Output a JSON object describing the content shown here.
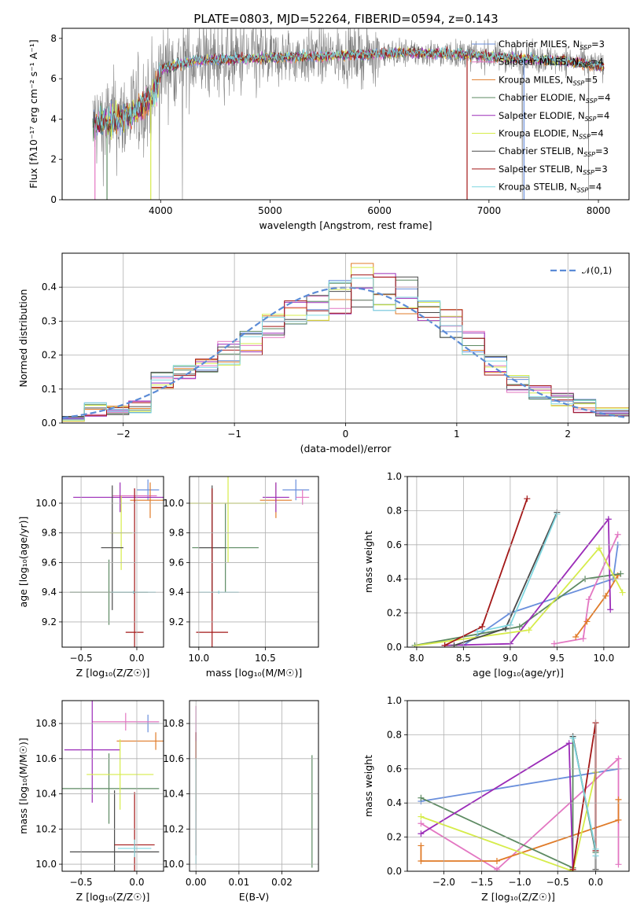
{
  "title": "PLATE=0803, MJD=52264, FIBERID=0594, z=0.143",
  "colors": {
    "Chabrier MILES": "#6a8fdc",
    "Salpeter MILES": "#e377c2",
    "Kroupa MILES": "#e07b28",
    "Chabrier ELODIE": "#5d8a62",
    "Salpeter ELODIE": "#9b2cb8",
    "Kroupa ELODIE": "#d6ec4a",
    "Chabrier STELIB": "#4a4a4a",
    "Salpeter STELIB": "#a31818",
    "Kroupa STELIB": "#7fd7e0"
  },
  "chart_data": [
    {
      "id": "spectrum",
      "type": "line",
      "xlabel": "wavelength [Angstrom, rest frame]",
      "ylabel": "Flux [fλ10⁻¹⁷ erg cm⁻² s⁻¹ A⁻¹]",
      "xlim": [
        3100,
        8280
      ],
      "ylim": [
        0,
        8.5
      ],
      "xticks": [
        "4000",
        "5000",
        "6000",
        "7000",
        "8000"
      ],
      "yticks": [
        "0",
        "2",
        "4",
        "6",
        "8"
      ],
      "grid": false,
      "legend_position": "top-right",
      "legend": [
        "Chabrier MILES, N_SSP=3",
        "Salpeter MILES, N_SSP=4",
        "Kroupa MILES, N_SSP=5",
        "Chabrier ELODIE, N_SSP=4",
        "Salpeter ELODIE, N_SSP=4",
        "Kroupa ELODIE, N_SSP=4",
        "Chabrier STELIB, N_SSP=3",
        "Salpeter STELIB, N_SSP=3",
        "Kroupa STELIB, N_SSP=4"
      ],
      "data_color": "#808080",
      "data_continuum": [
        {
          "x": 3380,
          "y": 3.7
        },
        {
          "x": 3600,
          "y": 4.0
        },
        {
          "x": 3750,
          "y": 4.3
        },
        {
          "x": 3950,
          "y": 5.3
        },
        {
          "x": 4000,
          "y": 6.5
        },
        {
          "x": 4300,
          "y": 6.9
        },
        {
          "x": 4800,
          "y": 7.0
        },
        {
          "x": 5300,
          "y": 7.1
        },
        {
          "x": 5800,
          "y": 7.2
        },
        {
          "x": 6300,
          "y": 7.3
        },
        {
          "x": 6800,
          "y": 7.2
        },
        {
          "x": 7300,
          "y": 7.0
        },
        {
          "x": 7700,
          "y": 6.9
        },
        {
          "x": 8050,
          "y": 6.6
        }
      ]
    },
    {
      "id": "residuals",
      "type": "area",
      "xlabel": "(data-model)/error",
      "ylabel": "Normed distribution",
      "xlim": [
        -2.55,
        2.55
      ],
      "ylim": [
        0,
        0.5
      ],
      "xticks": [
        "−2",
        "−1",
        "0",
        "1",
        "2"
      ],
      "yticks": [
        "0.0",
        "0.1",
        "0.2",
        "0.3",
        "0.4"
      ],
      "grid": true,
      "legend_position": "top-right",
      "reference_curve": {
        "label": "𝒩(0,1)",
        "mean": 0,
        "sigma": 1,
        "color": "#5b8bd6"
      },
      "bin_edges": [
        -2.55,
        -2.35,
        -2.15,
        -1.95,
        -1.75,
        -1.55,
        -1.35,
        -1.15,
        -0.95,
        -0.75,
        -0.55,
        -0.35,
        -0.15,
        0.05,
        0.25,
        0.45,
        0.65,
        0.85,
        1.05,
        1.25,
        1.45,
        1.65,
        1.85,
        2.05,
        2.25,
        2.55
      ],
      "envelope_low": [
        0.005,
        0.02,
        0.025,
        0.03,
        0.1,
        0.13,
        0.15,
        0.17,
        0.2,
        0.25,
        0.29,
        0.3,
        0.32,
        0.34,
        0.33,
        0.32,
        0.3,
        0.25,
        0.2,
        0.14,
        0.09,
        0.07,
        0.05,
        0.03,
        0.02
      ],
      "envelope_high": [
        0.02,
        0.06,
        0.05,
        0.065,
        0.15,
        0.17,
        0.19,
        0.24,
        0.27,
        0.32,
        0.36,
        0.38,
        0.42,
        0.47,
        0.44,
        0.43,
        0.36,
        0.34,
        0.27,
        0.2,
        0.14,
        0.11,
        0.09,
        0.07,
        0.045
      ]
    },
    {
      "id": "z-age",
      "type": "scatter",
      "xlabel": "Z [log₁₀(Z/Z☉)]",
      "ylabel": "age  [log₁₀(age/yr)]",
      "xlim": [
        -0.67,
        0.24
      ],
      "ylim": [
        9.03,
        10.18
      ],
      "xticks": [
        "−0.5",
        "0.0"
      ],
      "yticks": [
        "9.2",
        "9.4",
        "9.6",
        "9.8",
        "10.0"
      ],
      "grid": true,
      "crosses": [
        {
          "series": "Chabrier MILES",
          "x": 0.1,
          "y": 10.09,
          "xerr": 0.1,
          "yerr": 0.07
        },
        {
          "series": "Salpeter MILES",
          "x": -0.02,
          "y": 10.05,
          "xerr": 0.2,
          "yerr": 0.05
        },
        {
          "series": "Kroupa MILES",
          "x": 0.12,
          "y": 10.02,
          "xerr": 0.18,
          "yerr": 0.12
        },
        {
          "series": "Chabrier ELODIE",
          "x": -0.25,
          "y": 9.4,
          "xerr": 0.35,
          "yerr": 0.22
        },
        {
          "series": "Salpeter ELODIE",
          "x": -0.15,
          "y": 10.04,
          "xerr": 0.42,
          "yerr": 0.1
        },
        {
          "series": "Kroupa ELODIE",
          "x": -0.14,
          "y": 9.8,
          "xerr": 0.1,
          "yerr": 0.25
        },
        {
          "series": "Chabrier STELIB",
          "x": -0.22,
          "y": 9.7,
          "xerr": 0.1,
          "yerr": 0.42
        },
        {
          "series": "Salpeter STELIB",
          "x": -0.02,
          "y": 9.13,
          "xerr": 0.08,
          "yerr": 0.97
        },
        {
          "series": "Kroupa STELIB",
          "x": -0.03,
          "y": 9.4,
          "xerr": 0.2,
          "yerr": 0.01
        }
      ]
    },
    {
      "id": "mass-age",
      "type": "scatter",
      "xlabel": "mass [log₁₀(M/M☉)]",
      "ylabel": "",
      "xlim": [
        9.93,
        10.9
      ],
      "ylim": [
        9.03,
        10.18
      ],
      "xticks": [
        "10.0",
        "10.5"
      ],
      "yticks": [
        "9.2",
        "9.4",
        "9.6",
        "9.8",
        "10.0"
      ],
      "grid": true,
      "crosses": [
        {
          "series": "Chabrier MILES",
          "x": 10.73,
          "y": 10.09,
          "xerr": 0.1,
          "yerr": 0.07
        },
        {
          "series": "Salpeter MILES",
          "x": 10.78,
          "y": 10.04,
          "xerr": 0.05,
          "yerr": 0.05
        },
        {
          "series": "Kroupa MILES",
          "x": 10.58,
          "y": 10.02,
          "xerr": 0.12,
          "yerr": 0.12
        },
        {
          "series": "Chabrier ELODIE",
          "x": 10.2,
          "y": 9.7,
          "xerr": 0.25,
          "yerr": 0.3
        },
        {
          "series": "Salpeter ELODIE",
          "x": 10.58,
          "y": 10.04,
          "xerr": 0.1,
          "yerr": 0.1
        },
        {
          "series": "Kroupa ELODIE",
          "x": 10.22,
          "y": 10.0,
          "xerr": 0.3,
          "yerr": 0.4
        },
        {
          "series": "Chabrier STELIB",
          "x": 10.1,
          "y": 9.7,
          "xerr": 0.1,
          "yerr": 0.42
        },
        {
          "series": "Salpeter STELIB",
          "x": 10.1,
          "y": 9.13,
          "xerr": 0.12,
          "yerr": 0.97
        },
        {
          "series": "Kroupa STELIB",
          "x": 10.15,
          "y": 9.4,
          "xerr": 0.15,
          "yerr": 0.01
        }
      ]
    },
    {
      "id": "age-weight",
      "type": "line",
      "xlabel": "age  [log₁₀(age/yr)]",
      "ylabel": "mass weight",
      "xlim": [
        7.9,
        10.27
      ],
      "ylim": [
        0,
        1.0
      ],
      "xticks": [
        "8.0",
        "8.5",
        "9.0",
        "9.5",
        "10.0"
      ],
      "yticks": [
        "0.0",
        "0.2",
        "0.4",
        "0.6",
        "0.8",
        "1.0"
      ],
      "grid": true,
      "series": [
        {
          "name": "Chabrier MILES",
          "x": [
            8.5,
            9.0,
            10.1,
            10.15
          ],
          "y": [
            0.01,
            0.2,
            0.4,
            0.6
          ]
        },
        {
          "name": "Salpeter MILES",
          "x": [
            9.47,
            9.78,
            9.84,
            10.15
          ],
          "y": [
            0.02,
            0.05,
            0.28,
            0.66
          ]
        },
        {
          "name": "Kroupa MILES",
          "x": [
            9.7,
            9.82,
            10.02,
            10.15
          ],
          "y": [
            0.06,
            0.15,
            0.3,
            0.42
          ]
        },
        {
          "name": "Chabrier ELODIE",
          "x": [
            7.98,
            9.1,
            9.8,
            10.18
          ],
          "y": [
            0.01,
            0.12,
            0.4,
            0.43
          ]
        },
        {
          "name": "Salpeter ELODIE",
          "x": [
            8.3,
            9.0,
            10.05,
            10.07
          ],
          "y": [
            0.01,
            0.02,
            0.75,
            0.22
          ]
        },
        {
          "name": "Kroupa ELODIE",
          "x": [
            8.0,
            9.2,
            9.95,
            10.2
          ],
          "y": [
            0.01,
            0.1,
            0.58,
            0.32
          ]
        },
        {
          "name": "Chabrier STELIB",
          "x": [
            8.4,
            8.95,
            9.5
          ],
          "y": [
            0.01,
            0.11,
            0.79
          ]
        },
        {
          "name": "Salpeter STELIB",
          "x": [
            8.3,
            8.7,
            9.18
          ],
          "y": [
            0.01,
            0.12,
            0.87
          ]
        },
        {
          "name": "Kroupa STELIB",
          "x": [
            8.65,
            9.0,
            9.5
          ],
          "y": [
            0.09,
            0.13,
            0.78
          ]
        }
      ]
    },
    {
      "id": "z-mass",
      "type": "scatter",
      "xlabel": "Z [log₁₀(Z/Z☉)]",
      "ylabel": "mass [log₁₀(M/M☉)]",
      "xlim": [
        -0.67,
        0.24
      ],
      "ylim": [
        9.96,
        10.93
      ],
      "xticks": [
        "−0.5",
        "0.0"
      ],
      "yticks": [
        "10.0",
        "10.2",
        "10.4",
        "10.6",
        "10.8"
      ],
      "grid": true,
      "crosses": [
        {
          "series": "Chabrier MILES",
          "x": 0.1,
          "y": 10.8,
          "xerr": 0.1,
          "yerr": 0.05
        },
        {
          "series": "Salpeter MILES",
          "x": -0.1,
          "y": 10.81,
          "xerr": 0.3,
          "yerr": 0.05
        },
        {
          "series": "Kroupa MILES",
          "x": 0.17,
          "y": 10.7,
          "xerr": 0.35,
          "yerr": 0.05
        },
        {
          "series": "Chabrier ELODIE",
          "x": -0.25,
          "y": 10.43,
          "xerr": 0.45,
          "yerr": 0.2
        },
        {
          "series": "Salpeter ELODIE",
          "x": -0.4,
          "y": 10.65,
          "xerr": 0.25,
          "yerr": 0.3
        },
        {
          "series": "Kroupa ELODIE",
          "x": -0.15,
          "y": 10.51,
          "xerr": 0.3,
          "yerr": 0.2
        },
        {
          "series": "Chabrier STELIB",
          "x": -0.2,
          "y": 10.07,
          "xerr": 0.4,
          "yerr": 0.35
        },
        {
          "series": "Salpeter STELIB",
          "x": -0.02,
          "y": 10.11,
          "xerr": 0.18,
          "yerr": 0.3
        },
        {
          "series": "Kroupa STELIB",
          "x": -0.02,
          "y": 10.09,
          "xerr": 0.15,
          "yerr": 0.05
        }
      ]
    },
    {
      "id": "ebv-mass",
      "type": "scatter",
      "xlabel": "E(B-V)",
      "ylabel": "",
      "xlim": [
        -0.0015,
        0.0285
      ],
      "ylim": [
        9.96,
        10.93
      ],
      "xticks": [
        "0.00",
        "0.01",
        "0.02"
      ],
      "yticks": [
        "10.0",
        "10.2",
        "10.4",
        "10.6",
        "10.8"
      ],
      "grid": true,
      "crosses": [
        {
          "series": "Salpeter MILES",
          "x": 0.0,
          "y": 10.8,
          "xerr": 0,
          "yerr": 0.1
        },
        {
          "series": "Salpeter ELODIE",
          "x": 0.0,
          "y": 10.65,
          "xerr": 0,
          "yerr": 0.1
        },
        {
          "series": "Kroupa ELODIE",
          "x": 0.0,
          "y": 10.5,
          "xerr": 0,
          "yerr": 0.2
        },
        {
          "series": "Salpeter STELIB",
          "x": 0.0,
          "y": 10.4,
          "xerr": 0,
          "yerr": 0.35
        },
        {
          "series": "Kroupa STELIB",
          "x": 0.0,
          "y": 10.3,
          "xerr": 0,
          "yerr": 0.3
        },
        {
          "series": "Chabrier ELODIE",
          "x": 0.027,
          "y": 10.3,
          "xerr": 0,
          "yerr": 0.32
        }
      ]
    },
    {
      "id": "z-weight",
      "type": "line",
      "xlabel": "Z [log₁₀(Z/Z☉)]",
      "ylabel": "mass weight",
      "xlim": [
        -2.48,
        0.44
      ],
      "ylim": [
        0,
        1.0
      ],
      "xticks": [
        "−2.0",
        "−1.5",
        "−1.0",
        "−0.5",
        "0.0"
      ],
      "yticks": [
        "0.0",
        "0.2",
        "0.4",
        "0.6",
        "0.8",
        "1.0"
      ],
      "grid": true,
      "series": [
        {
          "name": "Chabrier MILES",
          "x": [
            -2.3,
            0.3
          ],
          "y": [
            0.41,
            0.6
          ]
        },
        {
          "name": "Salpeter MILES",
          "x": [
            -2.3,
            -1.3,
            0.3,
            0.3
          ],
          "y": [
            0.28,
            0.01,
            0.66,
            0.04
          ]
        },
        {
          "name": "Kroupa MILES",
          "x": [
            -2.3,
            -2.3,
            -1.3,
            0.3,
            0.3
          ],
          "y": [
            0.15,
            0.06,
            0.06,
            0.3,
            0.42
          ]
        },
        {
          "name": "Chabrier ELODIE",
          "x": [
            -2.3,
            -0.3,
            -0.3,
            0.0
          ],
          "y": [
            0.43,
            0.02,
            0.79,
            0.11
          ]
        },
        {
          "name": "Salpeter ELODIE",
          "x": [
            -2.3,
            -0.35,
            -0.3
          ],
          "y": [
            0.22,
            0.75,
            0.01
          ]
        },
        {
          "name": "Kroupa ELODIE",
          "x": [
            -2.3,
            -0.3,
            0.0
          ],
          "y": [
            0.32,
            0.0,
            0.58
          ]
        },
        {
          "name": "Chabrier STELIB",
          "x": [
            -0.3,
            0.0,
            0.0
          ],
          "y": [
            0.79,
            0.12,
            0.01
          ]
        },
        {
          "name": "Salpeter STELIB",
          "x": [
            -0.3,
            0.0,
            0.0
          ],
          "y": [
            0.01,
            0.87,
            0.12
          ]
        },
        {
          "name": "Kroupa STELIB",
          "x": [
            -0.3,
            0.0,
            0.0
          ],
          "y": [
            0.78,
            0.13,
            0.09
          ]
        }
      ]
    }
  ]
}
